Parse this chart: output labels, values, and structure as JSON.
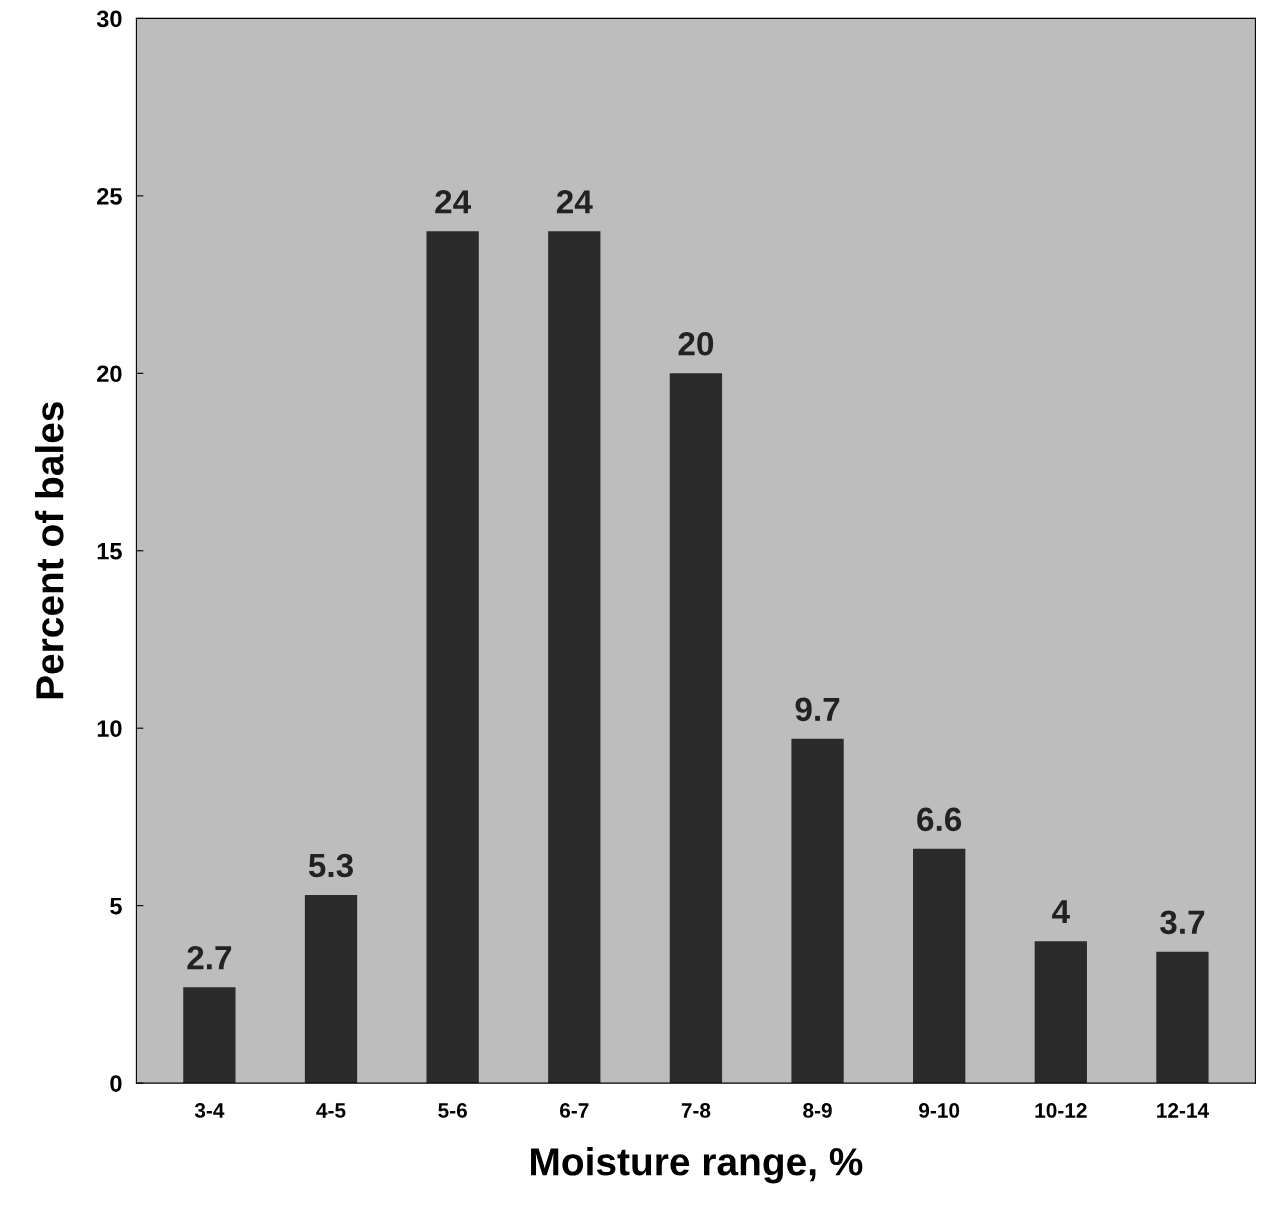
{
  "chart_data": {
    "type": "bar",
    "xlabel": "Moisture range, %",
    "ylabel": "Percent of bales",
    "categories": [
      "3-4",
      "4-5",
      "5-6",
      "6-7",
      "7-8",
      "8-9",
      "9-10",
      "10-12",
      "12-14"
    ],
    "values": [
      2.7,
      5.3,
      24,
      24,
      20,
      9.7,
      6.6,
      4,
      3.7
    ],
    "color": "#2b2b2b",
    "ylim": [
      0,
      30
    ],
    "yticks": [
      0,
      5,
      10,
      15,
      20,
      25,
      30
    ],
    "grid": false,
    "data_labels": true
  }
}
